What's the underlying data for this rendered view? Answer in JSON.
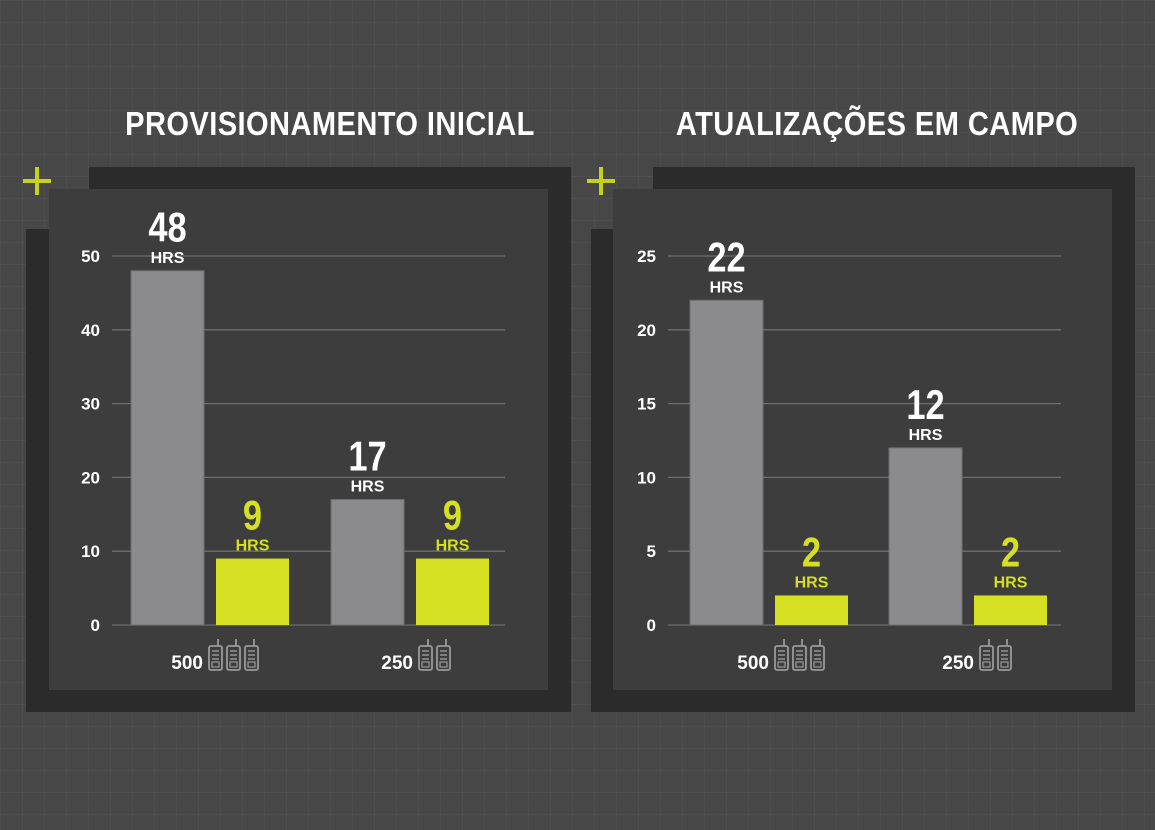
{
  "colors": {
    "gray_bar": "#8b8b8d",
    "green_bar": "#d4e021",
    "green_text": "#d4e021",
    "frame": "#2b2b2b",
    "panel": "#3d3d3d"
  },
  "icons": {
    "corner": "plus-icon",
    "device": "radio-device-icon"
  },
  "chart_data": [
    {
      "type": "bar",
      "title": "PROVISIONAMENTO INICIAL",
      "categories": [
        "500",
        "250"
      ],
      "category_icon_counts": [
        3,
        2
      ],
      "series": [
        {
          "values": [
            48,
            17
          ],
          "value_unit": "HRS",
          "color": "#8b8b8d"
        },
        {
          "values": [
            9,
            9
          ],
          "value_unit": "HRS",
          "color": "#d4e021"
        }
      ],
      "yticks": [
        0,
        10,
        20,
        30,
        40,
        50
      ],
      "ylim": [
        0,
        50
      ],
      "grid": true
    },
    {
      "type": "bar",
      "title": "ATUALIZAÇÕES EM CAMPO",
      "categories": [
        "500",
        "250"
      ],
      "category_icon_counts": [
        3,
        2
      ],
      "series": [
        {
          "values": [
            22,
            12
          ],
          "value_unit": "HRS",
          "color": "#8b8b8d"
        },
        {
          "values": [
            2,
            2
          ],
          "value_unit": "HRS",
          "color": "#d4e021"
        }
      ],
      "yticks": [
        0,
        5,
        10,
        15,
        20,
        25
      ],
      "ylim": [
        0,
        25
      ],
      "grid": true
    }
  ]
}
